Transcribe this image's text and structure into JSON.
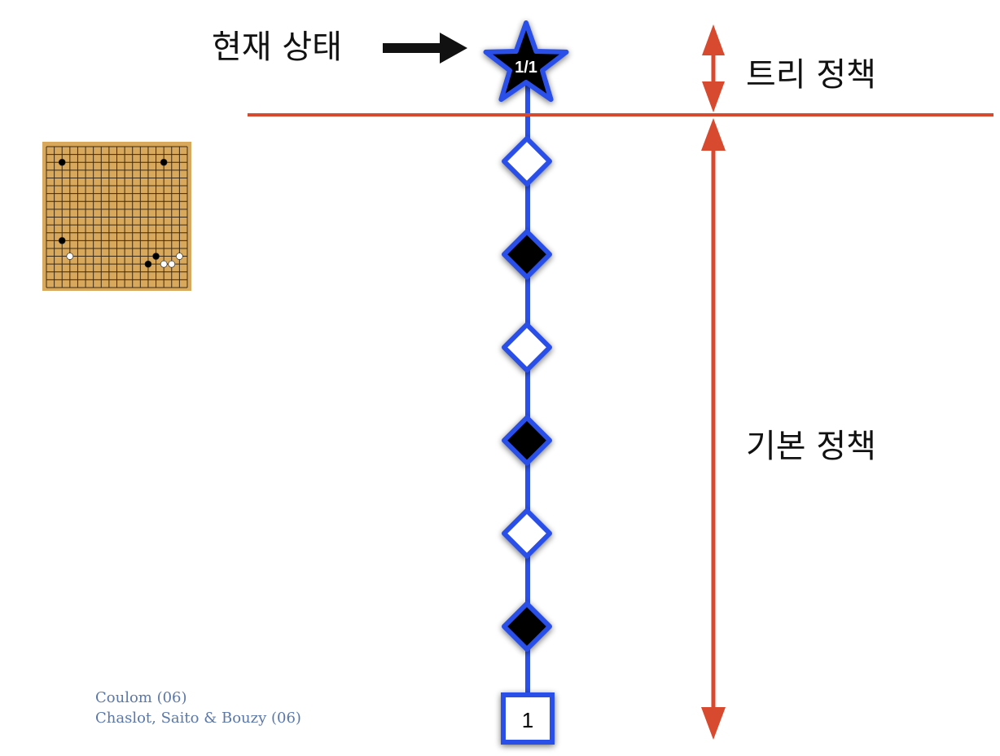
{
  "labels": {
    "current_state": "현재 상태",
    "tree_policy": "트리 정책",
    "default_policy": "기본 정책"
  },
  "root_node": {
    "label": "1/1",
    "shape": "star"
  },
  "path_nodes": [
    "white",
    "black",
    "white",
    "black",
    "white",
    "black"
  ],
  "terminal_node": {
    "label": "1",
    "shape": "square"
  },
  "citations": [
    "Coulom (06)",
    "Chaslot, Saito & Bouzy (06)"
  ],
  "go_board": {
    "size": 19,
    "black_stones": [
      [
        2,
        2
      ],
      [
        15,
        2
      ],
      [
        2,
        12
      ],
      [
        14,
        14
      ],
      [
        13,
        15
      ]
    ],
    "white_stones": [
      [
        3,
        14
      ],
      [
        17,
        14
      ],
      [
        16,
        15
      ],
      [
        15,
        15
      ]
    ]
  },
  "colors": {
    "node_outline": "#2b50e8",
    "divider": "#d84a30",
    "board": "#d8a95c",
    "citation": "#5b78a8"
  }
}
